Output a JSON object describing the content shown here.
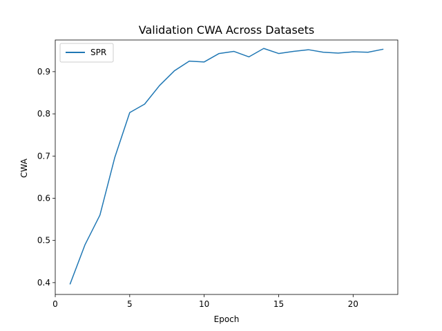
{
  "chart_data": {
    "type": "line",
    "title": "Validation CWA Across Datasets",
    "xlabel": "Epoch",
    "ylabel": "CWA",
    "xlim": [
      0,
      23
    ],
    "ylim": [
      0.372,
      0.975
    ],
    "xticks": [
      0,
      5,
      10,
      15,
      20
    ],
    "yticks": [
      0.4,
      0.5,
      0.6,
      0.7,
      0.8,
      0.9
    ],
    "yticklabels": [
      "0.4",
      "0.5",
      "0.6",
      "0.7",
      "0.8",
      "0.9"
    ],
    "grid": false,
    "legend": "top-left",
    "series": [
      {
        "name": "SPR",
        "color": "#1f77b4",
        "x": [
          1,
          2,
          3,
          4,
          5,
          6,
          7,
          8,
          9,
          10,
          11,
          12,
          13,
          14,
          15,
          16,
          17,
          18,
          19,
          20,
          21,
          22
        ],
        "y": [
          0.397,
          0.49,
          0.56,
          0.697,
          0.803,
          0.823,
          0.867,
          0.902,
          0.925,
          0.923,
          0.943,
          0.948,
          0.935,
          0.955,
          0.943,
          0.948,
          0.952,
          0.946,
          0.944,
          0.947,
          0.946,
          0.953
        ]
      }
    ]
  }
}
